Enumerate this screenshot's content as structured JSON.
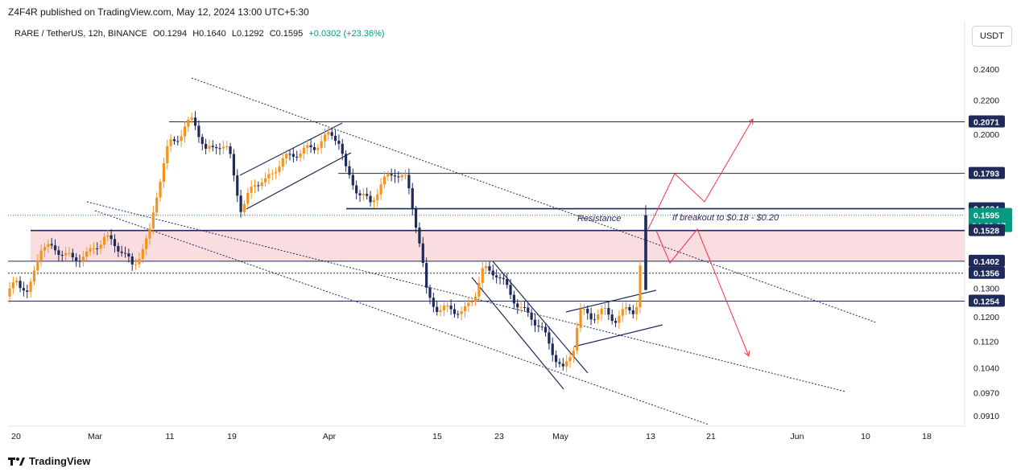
{
  "header": {
    "published": "Z4F4R published on TradingView.com, May 12, 2024 13:00 UTC+5:30",
    "symbol": "RARE / TetherUS, 12h, BINANCE",
    "open": "O0.1294",
    "high": "H0.1640",
    "low": "L0.1292",
    "close": "C0.1595",
    "change": "+0.0302 (+23.36%)",
    "currency_button": "USDT"
  },
  "footer": {
    "brand": "TradingView"
  },
  "colors": {
    "up": "#f7931a",
    "down": "#1e2a5a",
    "line": "#1e2a5a",
    "zone": "#f8d7dc",
    "arrow": "#f23645",
    "last_price": "#089981"
  },
  "annotations": {
    "resistance": "Resistance",
    "breakout": "If breakout to $0.18 - $0.20"
  },
  "chart_data": {
    "type": "candlestick",
    "title": "RARE / TetherUS, 12h, BINANCE",
    "x_ticks": [
      "20",
      "Mar",
      "11",
      "19",
      "Apr",
      "15",
      "23",
      "May",
      "13",
      "21",
      "Jun",
      "10",
      "18"
    ],
    "y_ticks": [
      "0.2400",
      "0.2200",
      "0.2000",
      "0.1300",
      "0.1200",
      "0.1120",
      "0.1040",
      "0.0970",
      "0.0910"
    ],
    "y_axis_scale": "log",
    "price_labels": [
      {
        "value": "0.2071"
      },
      {
        "value": "0.1793"
      },
      {
        "value": "0.1624"
      },
      {
        "value": "0.1595",
        "countdown": "04:29:07",
        "type": "last"
      },
      {
        "value": "0.1528"
      },
      {
        "value": "0.1402"
      },
      {
        "value": "0.1356"
      },
      {
        "value": "0.1254"
      }
    ],
    "horizontal_levels": [
      0.2071,
      0.1793,
      0.1624,
      0.1528,
      0.1402,
      0.1356,
      0.1254
    ],
    "zone": {
      "from": 0.1402,
      "to": 0.1528
    },
    "last_ohlc": {
      "open": 0.1294,
      "high": 0.164,
      "low": 0.1292,
      "close": 0.1595
    }
  }
}
